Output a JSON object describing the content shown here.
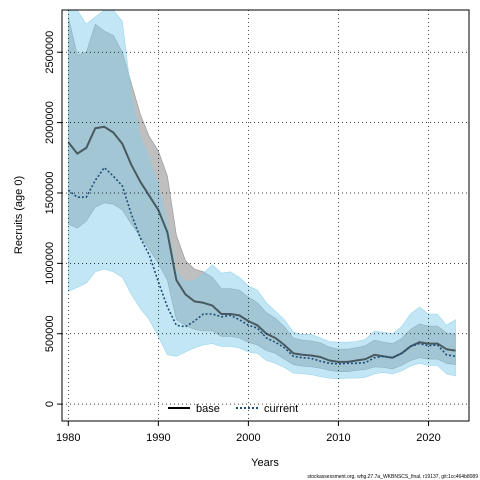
{
  "chart_data": {
    "type": "line",
    "title": "",
    "xlabel": "Years",
    "ylabel": "Recruits (age 0)",
    "xlim": [
      1979.3,
      2024.5
    ],
    "ylim": [
      -120000,
      2800000
    ],
    "xticks": [
      1980,
      1990,
      2000,
      2010,
      2020
    ],
    "yticks": [
      0,
      500000,
      1000000,
      1500000,
      2000000,
      2500000
    ],
    "grid": true,
    "legend": {
      "placement": "bottom-center",
      "entries": [
        "base",
        "current"
      ]
    },
    "x": [
      1980,
      1981,
      1982,
      1983,
      1984,
      1985,
      1986,
      1987,
      1988,
      1989,
      1990,
      1991,
      1992,
      1993,
      1994,
      1995,
      1996,
      1997,
      1998,
      1999,
      2000,
      2001,
      2002,
      2003,
      2004,
      2005,
      2006,
      2007,
      2008,
      2009,
      2010,
      2011,
      2012,
      2013,
      2014,
      2015,
      2016,
      2017,
      2018,
      2019,
      2020,
      2021,
      2022,
      2023
    ],
    "series": [
      {
        "name": "base",
        "color": "#000000",
        "line_style": "solid",
        "band_color": "#808080",
        "values": [
          1860000,
          1780000,
          1820000,
          1960000,
          1970000,
          1930000,
          1850000,
          1700000,
          1580000,
          1480000,
          1380000,
          1220000,
          880000,
          780000,
          730000,
          720000,
          700000,
          640000,
          640000,
          630000,
          590000,
          560000,
          500000,
          470000,
          420000,
          360000,
          350000,
          345000,
          335000,
          310000,
          300000,
          300000,
          310000,
          320000,
          350000,
          340000,
          330000,
          360000,
          410000,
          440000,
          430000,
          430000,
          390000,
          380000
        ],
        "lower": [
          1280000,
          1250000,
          1300000,
          1400000,
          1430000,
          1420000,
          1380000,
          1280000,
          1190000,
          1100000,
          1000000,
          880000,
          600000,
          560000,
          530000,
          520000,
          520000,
          480000,
          480000,
          470000,
          440000,
          420000,
          380000,
          360000,
          320000,
          280000,
          270000,
          265000,
          255000,
          240000,
          230000,
          230000,
          240000,
          245000,
          265000,
          260000,
          250000,
          275000,
          310000,
          330000,
          320000,
          320000,
          290000,
          280000
        ],
        "upper": [
          2750000,
          2480000,
          2500000,
          2700000,
          2650000,
          2620000,
          2500000,
          2280000,
          2060000,
          1900000,
          1800000,
          1620000,
          1200000,
          1020000,
          960000,
          940000,
          900000,
          820000,
          820000,
          810000,
          760000,
          720000,
          650000,
          610000,
          550000,
          470000,
          455000,
          448000,
          435000,
          405000,
          390000,
          390000,
          400000,
          415000,
          455000,
          440000,
          430000,
          465000,
          530000,
          570000,
          555000,
          555000,
          505000,
          495000
        ]
      },
      {
        "name": "current",
        "color": "#1f4e79",
        "line_style": "dotted",
        "band_color": "#87ceeb",
        "values": [
          1520000,
          1470000,
          1470000,
          1590000,
          1680000,
          1620000,
          1550000,
          1350000,
          1180000,
          1060000,
          870000,
          690000,
          560000,
          550000,
          590000,
          640000,
          640000,
          620000,
          630000,
          600000,
          560000,
          540000,
          470000,
          440000,
          400000,
          340000,
          330000,
          325000,
          305000,
          290000,
          285000,
          290000,
          290000,
          295000,
          330000,
          340000,
          330000,
          360000,
          410000,
          430000,
          415000,
          420000,
          350000,
          340000
        ],
        "lower": [
          800000,
          830000,
          860000,
          940000,
          960000,
          940000,
          900000,
          780000,
          680000,
          600000,
          480000,
          350000,
          340000,
          370000,
          400000,
          420000,
          430000,
          410000,
          410000,
          400000,
          370000,
          360000,
          310000,
          290000,
          260000,
          220000,
          215000,
          210000,
          195000,
          185000,
          180000,
          185000,
          185000,
          190000,
          215000,
          225000,
          215000,
          235000,
          270000,
          290000,
          275000,
          275000,
          215000,
          200000
        ],
        "upper": [
          2800000,
          2800000,
          2700000,
          2750000,
          2800000,
          2800000,
          2720000,
          2200000,
          1900000,
          1750000,
          1550000,
          1280000,
          940000,
          870000,
          880000,
          930000,
          990000,
          930000,
          940000,
          900000,
          840000,
          810000,
          720000,
          660000,
          600000,
          510000,
          495000,
          495000,
          470000,
          445000,
          440000,
          440000,
          445000,
          460000,
          520000,
          510000,
          500000,
          550000,
          640000,
          690000,
          640000,
          640000,
          560000,
          600000
        ]
      }
    ]
  },
  "footer_text": "stockassessment.org, whg.27.7a_WKBNSCS_final, r19137, git:1cc464b8089"
}
